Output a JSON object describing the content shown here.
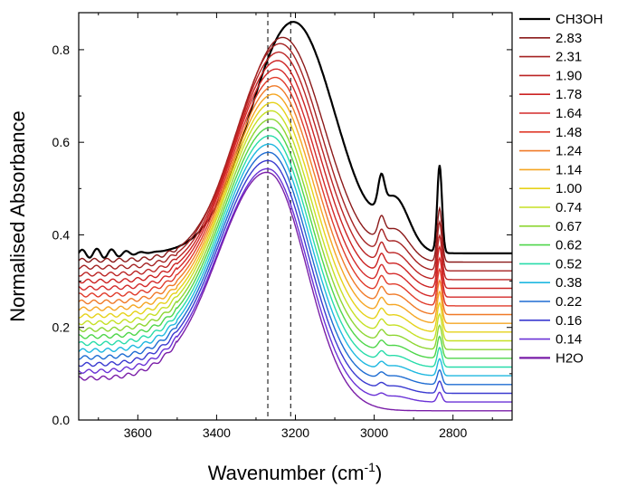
{
  "chart_data": {
    "type": "line",
    "xlabel": "Wavenumber (cm",
    "xlabel_sup": "-1",
    "xlabel_end": ")",
    "ylabel": "Normalised Absorbance",
    "xlim": [
      3750,
      2650
    ],
    "x_reversed": true,
    "ylim": [
      0,
      0.88
    ],
    "xticks": [
      3600,
      3400,
      3200,
      3000,
      2800
    ],
    "xtick_labels": [
      "3600",
      "3400",
      "3200",
      "3000",
      "2800"
    ],
    "yticks": [
      0.0,
      0.2,
      0.4,
      0.6,
      0.8
    ],
    "ytick_labels": [
      "0.0",
      "0.2",
      "0.4",
      "0.6",
      "0.8"
    ],
    "reference_lines_x": [
      3270,
      3212
    ],
    "legend_position": "right",
    "grid": false,
    "series": [
      {
        "name": "CH3OH",
        "color": "#000000",
        "offset": 0.36,
        "oh_height": 0.5,
        "ch_height": 0.18,
        "peak_x": 3205
      },
      {
        "name": "2.83",
        "color": "#8b1a1a",
        "offset": 0.345,
        "oh_height": 0.485,
        "ch_height": 0.11,
        "peak_x": 3232
      },
      {
        "name": "2.31",
        "color": "#a52222",
        "offset": 0.33,
        "oh_height": 0.49,
        "ch_height": 0.1,
        "peak_x": 3238
      },
      {
        "name": "1.90",
        "color": "#bb2424",
        "offset": 0.315,
        "oh_height": 0.49,
        "ch_height": 0.09,
        "peak_x": 3241
      },
      {
        "name": "1.78",
        "color": "#cc2222",
        "offset": 0.3,
        "oh_height": 0.49,
        "ch_height": 0.085,
        "peak_x": 3244
      },
      {
        "name": "1.64",
        "color": "#d42a2a",
        "offset": 0.285,
        "oh_height": 0.49,
        "ch_height": 0.08,
        "peak_x": 3247
      },
      {
        "name": "1.48",
        "color": "#e03a2a",
        "offset": 0.27,
        "oh_height": 0.49,
        "ch_height": 0.075,
        "peak_x": 3249
      },
      {
        "name": "1.24",
        "color": "#f07a28",
        "offset": 0.255,
        "oh_height": 0.49,
        "ch_height": 0.07,
        "peak_x": 3251
      },
      {
        "name": "1.14",
        "color": "#f5a623",
        "offset": 0.24,
        "oh_height": 0.49,
        "ch_height": 0.065,
        "peak_x": 3253
      },
      {
        "name": "1.00",
        "color": "#e6d21a",
        "offset": 0.225,
        "oh_height": 0.49,
        "ch_height": 0.06,
        "peak_x": 3255
      },
      {
        "name": "0.74",
        "color": "#c6e025",
        "offset": 0.21,
        "oh_height": 0.49,
        "ch_height": 0.055,
        "peak_x": 3257
      },
      {
        "name": "0.67",
        "color": "#8ed633",
        "offset": 0.195,
        "oh_height": 0.49,
        "ch_height": 0.05,
        "peak_x": 3258
      },
      {
        "name": "0.62",
        "color": "#4fd64a",
        "offset": 0.18,
        "oh_height": 0.49,
        "ch_height": 0.045,
        "peak_x": 3259
      },
      {
        "name": "0.52",
        "color": "#28dcaa",
        "offset": 0.165,
        "oh_height": 0.49,
        "ch_height": 0.04,
        "peak_x": 3260
      },
      {
        "name": "0.38",
        "color": "#1eb8e0",
        "offset": 0.15,
        "oh_height": 0.49,
        "ch_height": 0.035,
        "peak_x": 3261
      },
      {
        "name": "0.22",
        "color": "#1e6cd2",
        "offset": 0.135,
        "oh_height": 0.49,
        "ch_height": 0.03,
        "peak_x": 3262
      },
      {
        "name": "0.16",
        "color": "#3a3ad0",
        "offset": 0.12,
        "oh_height": 0.49,
        "ch_height": 0.025,
        "peak_x": 3263
      },
      {
        "name": "0.14",
        "color": "#6a32d6",
        "offset": 0.105,
        "oh_height": 0.49,
        "ch_height": 0.02,
        "peak_x": 3264
      },
      {
        "name": "H2O",
        "color": "#7a1ea8",
        "offset": 0.09,
        "oh_height": 0.5,
        "ch_height": 0.0,
        "peak_x": 3265
      }
    ]
  }
}
